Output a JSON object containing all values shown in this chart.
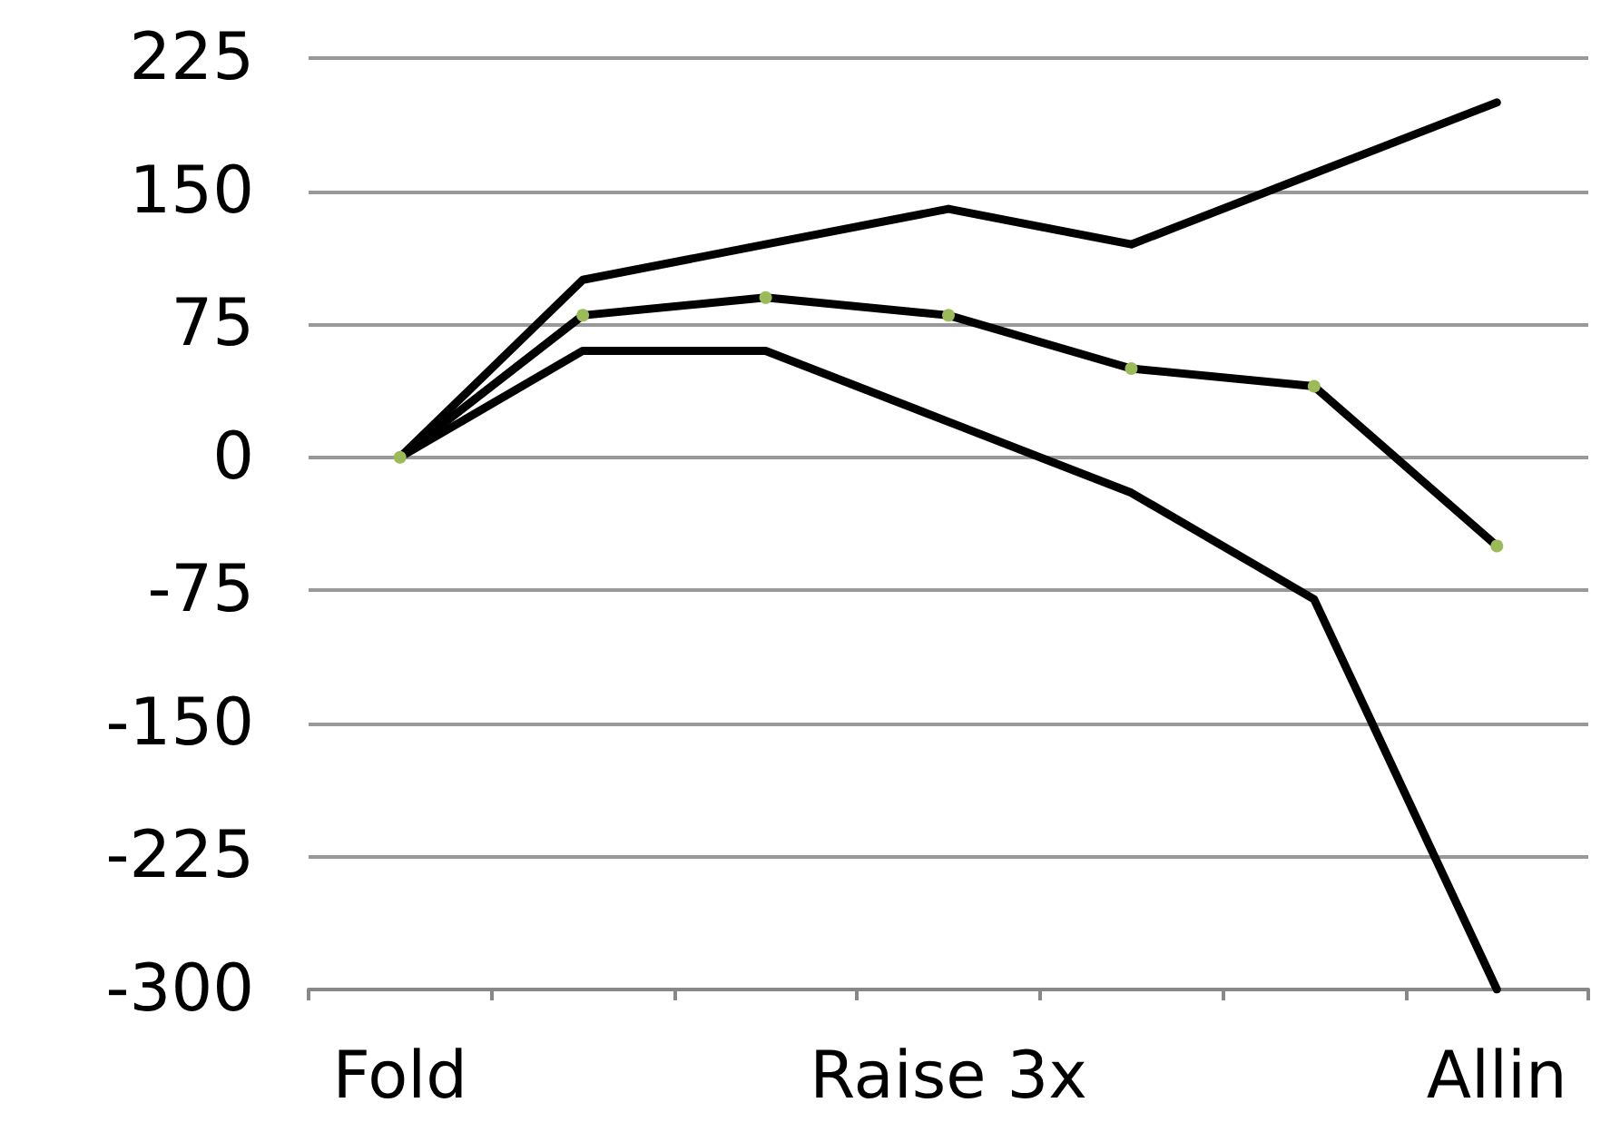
{
  "chart_data": {
    "type": "line",
    "categories": [
      "Fold",
      null,
      null,
      "Raise 3x",
      null,
      null,
      "Allin"
    ],
    "series": [
      {
        "color": "#000000",
        "marker": "none",
        "values": [
          0,
          100,
          120,
          140,
          120,
          160,
          200
        ]
      },
      {
        "color": "#000000",
        "marker": "circle",
        "colors": [
          "#9bbb59",
          "#9bbb59",
          "#9bbb59",
          "#9bbb59",
          "#9bbb59",
          "#9bbb59",
          "#9bbb59"
        ],
        "values": [
          0,
          80,
          90,
          80,
          50,
          40,
          -50
        ]
      },
      {
        "color": "#000000",
        "marker": "none",
        "values": [
          0,
          60,
          60,
          20,
          -20,
          -80,
          -300
        ]
      }
    ],
    "ylim": [
      -300,
      225
    ],
    "yticks": [
      -300,
      -225,
      -150,
      -75,
      0,
      75,
      150,
      225
    ],
    "grid": "y"
  }
}
